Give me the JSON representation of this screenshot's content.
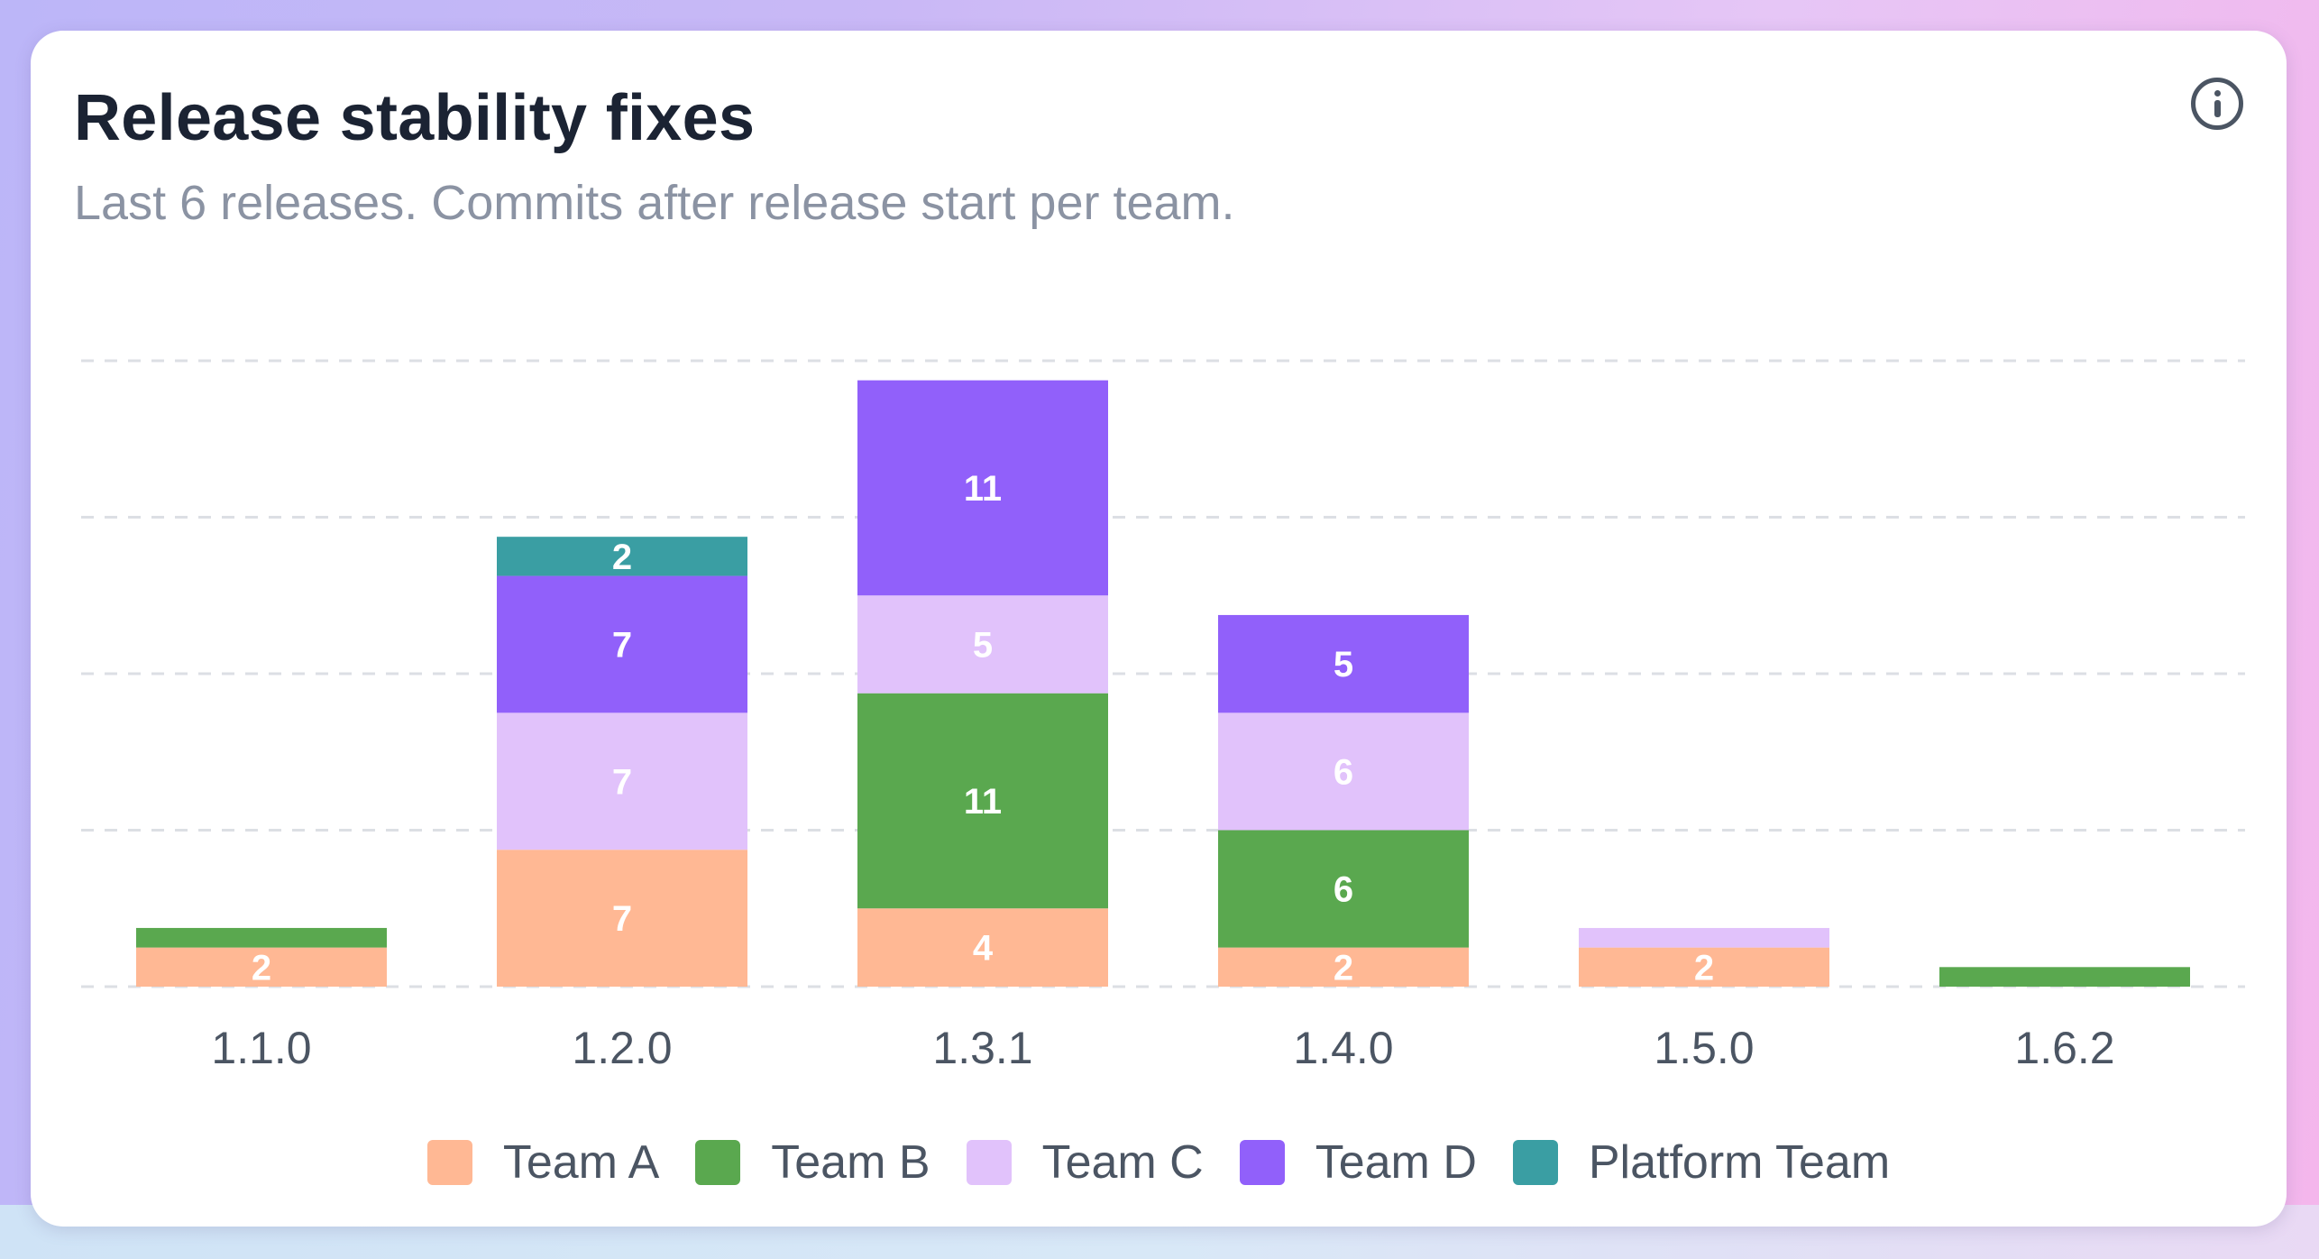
{
  "card": {
    "title": "Release stability fixes",
    "subtitle": "Last 6 releases. Commits after release start per team."
  },
  "icons": {
    "info": "info-circle-icon"
  },
  "colors": {
    "Team A": "#ffb894",
    "Team B": "#5aa84f",
    "Team C": "#e1c2fb",
    "Team D": "#9160fa",
    "Platform Team": "#3a9ea3"
  },
  "chart_data": {
    "type": "bar",
    "stacked": true,
    "categories": [
      "1.1.0",
      "1.2.0",
      "1.3.1",
      "1.4.0",
      "1.5.0",
      "1.6.2"
    ],
    "series": [
      {
        "name": "Team A",
        "values": [
          2,
          7,
          4,
          2,
          2,
          0
        ]
      },
      {
        "name": "Team B",
        "values": [
          1,
          0,
          11,
          6,
          0,
          1
        ]
      },
      {
        "name": "Team C",
        "values": [
          0,
          7,
          5,
          6,
          1,
          0
        ]
      },
      {
        "name": "Team D",
        "values": [
          0,
          7,
          11,
          5,
          0,
          0
        ]
      },
      {
        "name": "Platform Team",
        "values": [
          0,
          2,
          0,
          0,
          0,
          0
        ]
      }
    ],
    "ylim": [
      0,
      32
    ],
    "gridlines": [
      0,
      8,
      16,
      24,
      32
    ],
    "y_tick_labels_shown": false,
    "grid": true,
    "grid_style": "dashed",
    "legend_position": "bottom"
  }
}
